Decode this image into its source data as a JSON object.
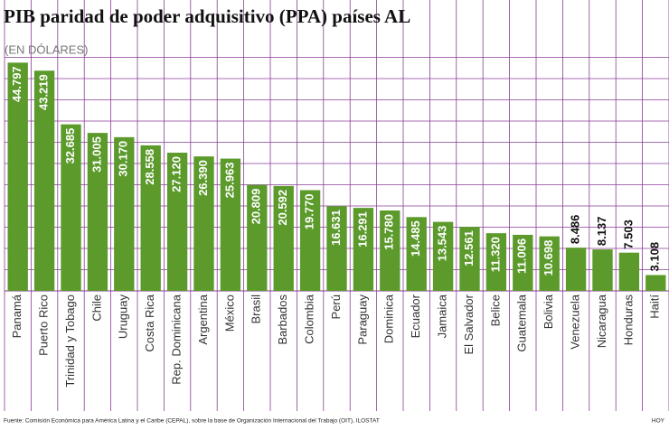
{
  "chart_data": {
    "type": "bar",
    "title": "PIB paridad de poder adquisitivo (PPA) países AL",
    "subtitle": "(EN DÓLARES)",
    "source": "Fuente: Comisión Económica para América Latina y el Caribe (CEPAL), sobre la base de Organización Internacional del Trabajo (OIT), ILOSTAT",
    "credit": "HOY",
    "categories": [
      "Panamá",
      "Puerto Rico",
      "Trinidad y Tobago",
      "Chile",
      "Uruguay",
      "Costa Rica",
      "Rep. Dominicana",
      "Argentina",
      "México",
      "Brasil",
      "Barbados",
      "Colombia",
      "Perú",
      "Paraguay",
      "Dominica",
      "Ecuador",
      "Jamaica",
      "El Salvador",
      "Belice",
      "Guatemala",
      "Bolivia",
      "Venezuela",
      "Nicaragua",
      "Honduras",
      "Haití"
    ],
    "values": [
      44797,
      43219,
      32685,
      31005,
      30170,
      28558,
      27120,
      26390,
      25963,
      20809,
      20592,
      19770,
      16631,
      16291,
      15780,
      14485,
      13543,
      12561,
      11320,
      11006,
      10698,
      8486,
      8137,
      7503,
      3108
    ],
    "value_labels": [
      "44.797",
      "43.219",
      "32.685",
      "31.005",
      "30.170",
      "28.558",
      "27.120",
      "26.390",
      "25.963",
      "20.809",
      "20.592",
      "19.770",
      "16.631",
      "16.291",
      "15.780",
      "14.485",
      "13.543",
      "12.561",
      "11.320",
      "11.006",
      "10.698",
      "8.486",
      "8.137",
      "7.503",
      "3.108"
    ],
    "color": "#5b9a2b",
    "ylim": [
      0,
      50000
    ]
  }
}
